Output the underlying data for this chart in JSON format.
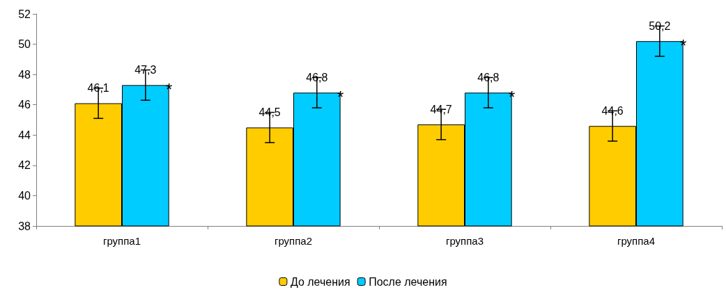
{
  "chart_data": {
    "type": "bar",
    "categories": [
      "группа1",
      "группа2",
      "группа3",
      "группа4"
    ],
    "series": [
      {
        "name": "До лечения",
        "color": "#ffcc00",
        "values": [
          46.1,
          44.5,
          44.7,
          44.6
        ],
        "errors": [
          1,
          1,
          1,
          1
        ],
        "value_labels": [
          "46,1",
          "44,5",
          "44,7",
          "44,6"
        ]
      },
      {
        "name": "После лечения",
        "color": "#00ccff",
        "values": [
          47.3,
          46.8,
          46.8,
          50.2
        ],
        "errors": [
          1,
          1,
          1,
          1
        ],
        "value_labels": [
          "47,3",
          "46,8",
          "46,8",
          "50,2"
        ]
      }
    ],
    "annotations": [
      {
        "text": "*",
        "x": "группа1",
        "y": 47.3
      },
      {
        "text": "*",
        "x": "группа2",
        "y": 46.8
      },
      {
        "text": "*",
        "x": "группа3",
        "y": 46.8
      },
      {
        "text": "*",
        "x": "группа4",
        "y": 50.2
      }
    ],
    "ylim": [
      38,
      52
    ],
    "yticks": [
      38,
      40,
      42,
      44,
      46,
      48,
      50,
      52
    ],
    "grid": false,
    "legend": "bottom"
  }
}
